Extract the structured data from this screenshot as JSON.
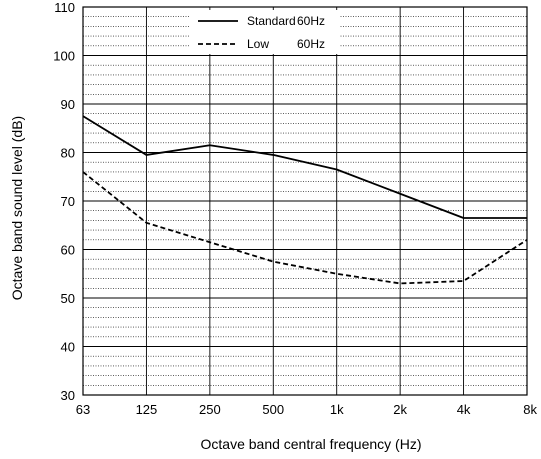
{
  "chart_data": {
    "type": "line",
    "title": "",
    "xlabel": "Octave band central frequency (Hz)",
    "ylabel": "Octave band sound level (dB)",
    "categories": [
      "63",
      "125",
      "250",
      "500",
      "1k",
      "2k",
      "4k",
      "8k"
    ],
    "ylim": [
      30,
      110
    ],
    "y_major_ticks": [
      30,
      40,
      50,
      60,
      70,
      80,
      90,
      100,
      110
    ],
    "y_minor_step": 2,
    "grid": true,
    "legend_position": "top-center",
    "series": [
      {
        "name": "Standard",
        "suffix": "60Hz",
        "style": "solid",
        "values": [
          87.5,
          79.5,
          81.5,
          79.5,
          76.5,
          71.5,
          66.5,
          66.5
        ]
      },
      {
        "name": "Low",
        "suffix": "60Hz",
        "style": "dashed",
        "values": [
          76,
          65.5,
          61.5,
          57.5,
          55,
          53,
          53.5,
          62
        ]
      }
    ],
    "line_color": "#000000",
    "grid_color": "#000000"
  }
}
